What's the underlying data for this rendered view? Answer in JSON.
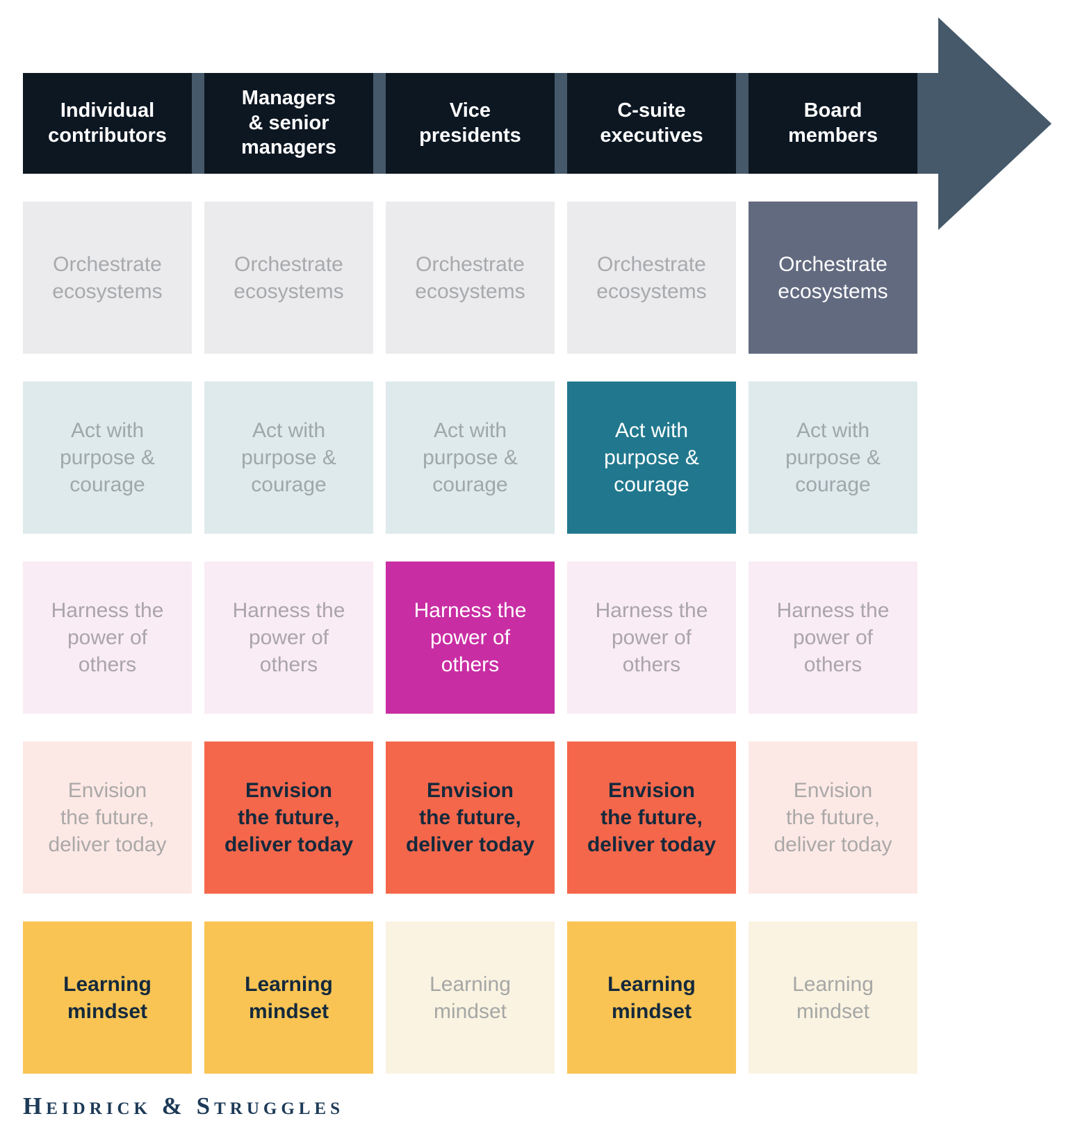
{
  "colors": {
    "page_bg": "#ffffff",
    "header_bg": "#0d1722",
    "header_text": "#ffffff",
    "arrow": "#45596a",
    "muted_text": "#a7a9ac",
    "logo_text": "#1d3a57"
  },
  "header": {
    "columns": [
      {
        "id": "individual-contributors",
        "label": "Individual\ncontributors"
      },
      {
        "id": "managers-senior-managers",
        "label": "Managers\n& senior\nmanagers"
      },
      {
        "id": "vice-presidents",
        "label": "Vice\npresidents"
      },
      {
        "id": "c-suite-executives",
        "label": "C-suite\nexecutives"
      },
      {
        "id": "board-members",
        "label": "Board\nmembers"
      }
    ]
  },
  "matrix": {
    "rows": [
      {
        "id": "orchestrate-ecosystems",
        "label": "Orchestrate\necosystems",
        "base_bg": "#ebebed",
        "muted_text": "#a7a9ac",
        "highlight_bg": "#626a80",
        "highlight_text": "#ffffff",
        "highlighted_columns": [
          4
        ]
      },
      {
        "id": "act-with-purpose-courage",
        "label": "Act with\npurpose &\ncourage",
        "base_bg": "#deeaec",
        "muted_text": "#9fa7aa",
        "highlight_bg": "#21788e",
        "highlight_text": "#ffffff",
        "highlighted_columns": [
          3
        ]
      },
      {
        "id": "harness-the-power-of-others",
        "label": "Harness the\npower of\nothers",
        "base_bg": "#f9ecf5",
        "muted_text": "#aaa5aa",
        "highlight_bg": "#c92da3",
        "highlight_text": "#ffffff",
        "highlighted_columns": [
          2
        ]
      },
      {
        "id": "envision-the-future-deliver-today",
        "label": "Envision\nthe future,\ndeliver today",
        "base_bg": "#fce9e6",
        "muted_text": "#aaa8a7",
        "highlight_bg": "#f4674b",
        "highlight_text": "#14293c",
        "highlighted_columns": [
          1,
          2,
          3
        ]
      },
      {
        "id": "learning-mindset",
        "label": "Learning\nmindset",
        "base_bg": "#faf3e2",
        "muted_text": "#a5a7a5",
        "highlight_bg": "#f9c454",
        "highlight_text": "#14293c",
        "highlighted_columns": [
          0,
          1,
          3
        ]
      }
    ]
  },
  "footer": {
    "logo": "Heidrick & Struggles"
  }
}
